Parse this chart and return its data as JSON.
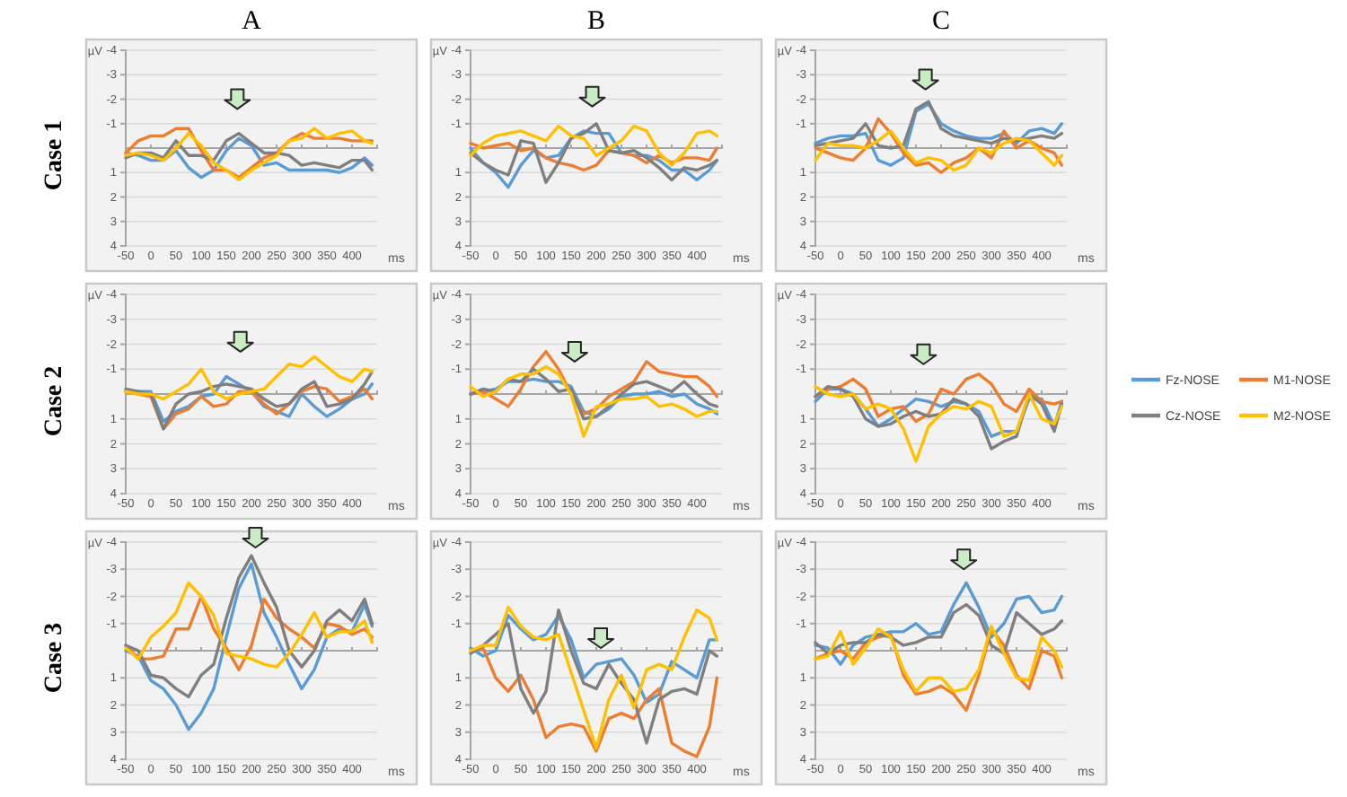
{
  "chart_data": [
    {
      "type": "line",
      "title": "A",
      "xlabel": "ms",
      "ylabel": "µV",
      "annotations": [
        "Case 1"
      ],
      "x": [
        -50,
        -25,
        0,
        25,
        50,
        75,
        100,
        125,
        150,
        175,
        200,
        225,
        250,
        275,
        300,
        325,
        350,
        375,
        400,
        425,
        440
      ],
      "xlim": [
        -50,
        450
      ],
      "xticks": [
        -50,
        0,
        50,
        100,
        150,
        200,
        250,
        300,
        350,
        400
      ],
      "ylim": [
        4,
        -4
      ],
      "yticks": [
        -4,
        -3,
        -2,
        -1,
        1,
        2,
        3,
        4
      ],
      "grid": "y",
      "series": [
        {
          "color": "#5b9bd5",
          "values": [
            0.2,
            0.3,
            0.5,
            0.5,
            0.1,
            0.8,
            1.2,
            0.9,
            0.1,
            -0.4,
            -0.1,
            0.7,
            0.6,
            0.9,
            0.9,
            0.9,
            0.9,
            1.0,
            0.8,
            0.4,
            0.7
          ]
        },
        {
          "color": "#ed7d31",
          "values": [
            0.2,
            -0.3,
            -0.5,
            -0.5,
            -0.8,
            -0.8,
            0.1,
            0.9,
            0.9,
            1.2,
            0.8,
            0.4,
            0.2,
            -0.3,
            -0.6,
            -0.4,
            -0.4,
            -0.4,
            -0.3,
            -0.3,
            -0.3
          ]
        },
        {
          "color": "#7f7f7f",
          "values": [
            0.4,
            0.2,
            0.2,
            0.4,
            -0.3,
            0.3,
            0.3,
            0.5,
            -0.3,
            -0.6,
            -0.2,
            0.2,
            0.2,
            0.3,
            0.7,
            0.6,
            0.7,
            0.8,
            0.5,
            0.5,
            0.9
          ]
        },
        {
          "color": "#ffc000",
          "values": [
            0.3,
            0.2,
            0.3,
            0.5,
            0.0,
            -0.6,
            -0.1,
            0.6,
            0.9,
            1.3,
            0.9,
            0.6,
            0.3,
            -0.3,
            -0.4,
            -0.8,
            -0.4,
            -0.6,
            -0.7,
            -0.3,
            -0.2
          ]
        }
      ]
    },
    {
      "type": "line",
      "title": "B",
      "xlabel": "ms",
      "ylabel": "µV",
      "x": [
        -50,
        -25,
        0,
        25,
        50,
        75,
        100,
        125,
        150,
        175,
        200,
        225,
        250,
        275,
        300,
        325,
        350,
        375,
        400,
        425,
        440
      ],
      "xlim": [
        -50,
        450
      ],
      "xticks": [
        -50,
        0,
        50,
        100,
        150,
        200,
        250,
        300,
        350,
        400
      ],
      "ylim": [
        4,
        -4
      ],
      "yticks": [
        -4,
        -3,
        -2,
        -1,
        1,
        2,
        3,
        4
      ],
      "grid": "y",
      "series": [
        {
          "color": "#5b9bd5",
          "values": [
            0.0,
            0.6,
            1.0,
            1.6,
            0.7,
            0.1,
            0.4,
            0.3,
            -0.4,
            -0.7,
            -0.6,
            -0.6,
            0.2,
            0.3,
            0.3,
            0.5,
            0.9,
            0.9,
            1.3,
            0.9,
            0.5
          ]
        },
        {
          "color": "#ed7d31",
          "values": [
            -0.2,
            0.0,
            -0.1,
            -0.2,
            0.1,
            0.0,
            0.4,
            0.6,
            0.7,
            0.9,
            0.7,
            0.1,
            0.2,
            0.3,
            0.6,
            0.3,
            0.6,
            0.4,
            0.4,
            0.5,
            0.0
          ]
        },
        {
          "color": "#7f7f7f",
          "values": [
            0.2,
            0.6,
            0.9,
            1.1,
            -0.3,
            -0.2,
            1.4,
            0.6,
            -0.4,
            -0.6,
            -1.0,
            0.1,
            0.2,
            0.1,
            0.4,
            0.8,
            1.3,
            0.8,
            0.9,
            0.7,
            0.5
          ]
        },
        {
          "color": "#ffc000",
          "values": [
            0.3,
            -0.2,
            -0.5,
            -0.6,
            -0.7,
            -0.5,
            -0.3,
            -0.9,
            -0.5,
            -0.4,
            0.3,
            0.0,
            -0.3,
            -0.9,
            -0.7,
            0.2,
            0.7,
            0.2,
            -0.6,
            -0.7,
            -0.5
          ]
        }
      ]
    },
    {
      "type": "line",
      "title": "C",
      "xlabel": "ms",
      "ylabel": "µV",
      "x": [
        -50,
        -25,
        0,
        25,
        50,
        75,
        100,
        125,
        150,
        175,
        200,
        225,
        250,
        275,
        300,
        325,
        350,
        375,
        400,
        425,
        440
      ],
      "xlim": [
        -50,
        450
      ],
      "xticks": [
        -50,
        0,
        50,
        100,
        150,
        200,
        250,
        300,
        350,
        400
      ],
      "ylim": [
        4,
        -4
      ],
      "yticks": [
        -4,
        -3,
        -2,
        -1,
        1,
        2,
        3,
        4
      ],
      "grid": "y",
      "series": [
        {
          "color": "#5b9bd5",
          "values": [
            -0.2,
            -0.4,
            -0.5,
            -0.5,
            -0.6,
            0.5,
            0.7,
            0.4,
            -1.5,
            -1.8,
            -1.0,
            -0.7,
            -0.5,
            -0.4,
            -0.4,
            -0.6,
            -0.2,
            -0.7,
            -0.8,
            -0.6,
            -1.0
          ]
        },
        {
          "color": "#ed7d31",
          "values": [
            0.0,
            0.2,
            0.4,
            0.5,
            0.0,
            -1.2,
            -0.6,
            0.2,
            0.7,
            0.6,
            1.0,
            0.6,
            0.4,
            0.0,
            0.4,
            -0.7,
            0.0,
            -0.3,
            0.0,
            0.2,
            0.7
          ]
        },
        {
          "color": "#7f7f7f",
          "values": [
            -0.1,
            -0.2,
            -0.3,
            -0.4,
            -1.0,
            -0.1,
            0.0,
            -0.1,
            -1.6,
            -1.9,
            -0.8,
            -0.5,
            -0.4,
            -0.3,
            -0.2,
            -0.4,
            -0.3,
            -0.4,
            -0.5,
            -0.4,
            -0.6
          ]
        },
        {
          "color": "#ffc000",
          "values": [
            0.5,
            -0.2,
            -0.1,
            -0.1,
            0.0,
            -0.3,
            -0.7,
            0.0,
            0.6,
            0.4,
            0.5,
            0.9,
            0.7,
            0.0,
            0.2,
            -0.2,
            -0.4,
            -0.3,
            0.2,
            0.7,
            0.3
          ]
        }
      ]
    },
    {
      "type": "line",
      "xlabel": "ms",
      "ylabel": "µV",
      "annotations": [
        "Case 2"
      ],
      "x": [
        -50,
        -25,
        0,
        25,
        50,
        75,
        100,
        125,
        150,
        175,
        200,
        225,
        250,
        275,
        300,
        325,
        350,
        375,
        400,
        425,
        440
      ],
      "xlim": [
        -50,
        450
      ],
      "xticks": [
        -50,
        0,
        50,
        100,
        150,
        200,
        250,
        300,
        350,
        400
      ],
      "ylim": [
        4,
        -4
      ],
      "yticks": [
        -4,
        -3,
        -2,
        -1,
        1,
        2,
        3,
        4
      ],
      "grid": "y",
      "series": [
        {
          "color": "#5b9bd5",
          "values": [
            -0.1,
            -0.1,
            -0.1,
            1.1,
            0.7,
            0.5,
            0.1,
            0.0,
            -0.7,
            -0.4,
            -0.1,
            0.5,
            0.7,
            0.9,
            0.0,
            0.5,
            0.9,
            0.6,
            0.2,
            0.0,
            -0.4
          ]
        },
        {
          "color": "#ed7d31",
          "values": [
            -0.1,
            0.0,
            0.1,
            1.4,
            0.8,
            0.6,
            0.1,
            0.5,
            0.4,
            -0.1,
            -0.1,
            0.4,
            0.8,
            0.4,
            -0.1,
            -0.3,
            -0.2,
            0.3,
            0.1,
            -0.2,
            0.2
          ]
        },
        {
          "color": "#7f7f7f",
          "values": [
            -0.2,
            -0.1,
            0.0,
            1.4,
            0.4,
            0.0,
            -0.1,
            -0.3,
            -0.4,
            -0.3,
            -0.2,
            0.2,
            0.5,
            0.4,
            -0.2,
            -0.5,
            0.5,
            0.4,
            0.2,
            -0.4,
            -0.9
          ]
        },
        {
          "color": "#ffc000",
          "values": [
            -0.1,
            0.0,
            0.0,
            0.2,
            -0.1,
            -0.4,
            -1.0,
            -0.1,
            0.2,
            0.0,
            -0.1,
            -0.2,
            -0.7,
            -1.2,
            -1.1,
            -1.5,
            -1.1,
            -0.7,
            -0.5,
            -1.0,
            -0.9
          ]
        }
      ]
    },
    {
      "type": "line",
      "xlabel": "ms",
      "ylabel": "µV",
      "x": [
        -50,
        -25,
        0,
        25,
        50,
        75,
        100,
        125,
        150,
        175,
        200,
        225,
        250,
        275,
        300,
        325,
        350,
        375,
        400,
        425,
        440
      ],
      "xlim": [
        -50,
        450
      ],
      "xticks": [
        -50,
        0,
        50,
        100,
        150,
        200,
        250,
        300,
        350,
        400
      ],
      "ylim": [
        4,
        -4
      ],
      "yticks": [
        -4,
        -3,
        -2,
        -1,
        1,
        2,
        3,
        4
      ],
      "grid": "y",
      "series": [
        {
          "color": "#5b9bd5",
          "values": [
            0.0,
            -0.1,
            -0.2,
            -0.5,
            -0.5,
            -0.6,
            -0.5,
            -0.5,
            -0.3,
            0.7,
            0.9,
            0.6,
            0.1,
            0.0,
            0.0,
            -0.1,
            0.1,
            0.0,
            0.4,
            0.6,
            0.8
          ]
        },
        {
          "color": "#ed7d31",
          "values": [
            0.0,
            -0.1,
            0.2,
            0.5,
            -0.2,
            -1.1,
            -1.7,
            -1.0,
            0.0,
            0.8,
            0.6,
            0.1,
            -0.2,
            -0.5,
            -1.3,
            -0.9,
            -0.8,
            -0.7,
            -0.7,
            -0.3,
            0.1
          ]
        },
        {
          "color": "#7f7f7f",
          "values": [
            0.0,
            -0.2,
            -0.1,
            -0.6,
            -0.5,
            -1.0,
            -0.6,
            -0.1,
            -0.2,
            1.0,
            0.9,
            0.5,
            0.0,
            -0.4,
            -0.5,
            -0.3,
            -0.1,
            -0.5,
            0.0,
            0.4,
            0.5
          ]
        },
        {
          "color": "#ffc000",
          "values": [
            -0.3,
            0.1,
            -0.1,
            -0.6,
            -0.8,
            -0.8,
            -1.1,
            -0.8,
            0.0,
            1.7,
            0.5,
            0.4,
            0.2,
            0.2,
            0.1,
            0.5,
            0.4,
            0.6,
            0.9,
            0.7,
            0.7
          ]
        }
      ]
    },
    {
      "type": "line",
      "xlabel": "ms",
      "ylabel": "µV",
      "legend": "right",
      "x": [
        -50,
        -25,
        0,
        25,
        50,
        75,
        100,
        125,
        150,
        175,
        200,
        225,
        250,
        275,
        300,
        325,
        350,
        375,
        400,
        425,
        440
      ],
      "xlim": [
        -50,
        450
      ],
      "xticks": [
        -50,
        0,
        50,
        100,
        150,
        200,
        250,
        300,
        350,
        400
      ],
      "ylim": [
        4,
        -4
      ],
      "yticks": [
        -4,
        -3,
        -2,
        -1,
        1,
        2,
        3,
        4
      ],
      "grid": "y",
      "series": [
        {
          "name": "Fz-NOSE",
          "color": "#5b9bd5",
          "values": [
            0.3,
            -0.2,
            -0.2,
            0.0,
            0.6,
            1.3,
            1.0,
            0.6,
            0.2,
            0.3,
            0.5,
            0.3,
            0.4,
            0.7,
            1.7,
            1.5,
            1.5,
            0.2,
            0.2,
            1.3,
            0.3
          ]
        },
        {
          "name": "M1-NOSE",
          "color": "#ed7d31",
          "values": [
            0.1,
            -0.2,
            -0.3,
            -0.6,
            -0.2,
            0.9,
            0.6,
            0.5,
            1.1,
            0.8,
            -0.2,
            0.0,
            -0.6,
            -0.8,
            -0.4,
            0.4,
            0.7,
            -0.2,
            0.3,
            0.4,
            0.3
          ]
        },
        {
          "name": "Cz-NOSE",
          "color": "#7f7f7f",
          "values": [
            0.1,
            -0.3,
            -0.2,
            0.1,
            1.0,
            1.3,
            1.2,
            0.9,
            0.7,
            0.9,
            0.8,
            0.2,
            0.4,
            0.9,
            2.2,
            1.9,
            1.7,
            0.0,
            0.4,
            1.5,
            0.4
          ]
        },
        {
          "name": "M2-NOSE",
          "color": "#ffc000",
          "values": [
            -0.3,
            0.0,
            0.1,
            0.0,
            0.6,
            0.4,
            0.6,
            1.4,
            2.7,
            1.3,
            0.8,
            0.5,
            0.6,
            0.3,
            0.5,
            1.7,
            1.5,
            0.0,
            1.0,
            1.2,
            0.5
          ]
        }
      ]
    },
    {
      "type": "line",
      "xlabel": "ms",
      "ylabel": "µV",
      "annotations": [
        "Case 3"
      ],
      "x": [
        -50,
        -25,
        0,
        25,
        50,
        75,
        100,
        125,
        150,
        175,
        200,
        225,
        250,
        275,
        300,
        325,
        350,
        375,
        400,
        425,
        440
      ],
      "xlim": [
        -50,
        450
      ],
      "xticks": [
        -50,
        0,
        50,
        100,
        150,
        200,
        250,
        300,
        350,
        400
      ],
      "ylim": [
        4,
        -4
      ],
      "yticks": [
        -4,
        -3,
        -2,
        -1,
        1,
        2,
        3,
        4
      ],
      "grid": "y",
      "series": [
        {
          "color": "#5b9bd5",
          "values": [
            0.0,
            0.2,
            1.1,
            1.4,
            2.0,
            2.9,
            2.3,
            1.4,
            -0.5,
            -2.3,
            -3.2,
            -1.4,
            -0.5,
            0.5,
            1.4,
            0.7,
            -0.5,
            -0.8,
            -0.7,
            -1.7,
            -0.9
          ]
        },
        {
          "color": "#ed7d31",
          "values": [
            -0.2,
            0.3,
            0.3,
            0.2,
            -0.8,
            -0.8,
            -2.0,
            -0.8,
            -0.1,
            0.7,
            -0.2,
            -1.9,
            -1.2,
            -0.8,
            -0.5,
            -0.1,
            -1.0,
            -0.9,
            -0.6,
            -0.8,
            -0.5
          ]
        },
        {
          "color": "#7f7f7f",
          "values": [
            -0.2,
            0.0,
            0.9,
            1.0,
            1.4,
            1.7,
            0.9,
            0.5,
            -1.2,
            -2.7,
            -3.5,
            -2.5,
            -1.6,
            0.0,
            0.6,
            0.0,
            -1.1,
            -1.5,
            -1.1,
            -1.9,
            -1.0
          ]
        },
        {
          "color": "#ffc000",
          "values": [
            -0.1,
            0.3,
            -0.5,
            -0.9,
            -1.4,
            -2.5,
            -2.0,
            -1.3,
            0.1,
            0.2,
            0.3,
            0.5,
            0.6,
            0.1,
            -0.6,
            -1.4,
            -0.5,
            -0.7,
            -0.7,
            -1.1,
            -0.3
          ]
        }
      ]
    },
    {
      "type": "line",
      "xlabel": "ms",
      "ylabel": "µV",
      "x": [
        -50,
        -25,
        0,
        25,
        50,
        75,
        100,
        125,
        150,
        175,
        200,
        225,
        250,
        275,
        300,
        325,
        350,
        375,
        400,
        425,
        440
      ],
      "xlim": [
        -50,
        450
      ],
      "xticks": [
        -50,
        0,
        50,
        100,
        150,
        200,
        250,
        300,
        350,
        400
      ],
      "ylim": [
        4,
        -4
      ],
      "yticks": [
        -4,
        -3,
        -2,
        -1,
        1,
        2,
        3,
        4
      ],
      "grid": "y",
      "series": [
        {
          "color": "#5b9bd5",
          "values": [
            -0.1,
            0.2,
            0.0,
            -1.3,
            -0.8,
            -0.4,
            -0.6,
            -1.3,
            -0.4,
            1.0,
            0.5,
            0.4,
            0.3,
            0.9,
            1.9,
            1.6,
            0.4,
            0.7,
            1.0,
            -0.4,
            -0.4
          ]
        },
        {
          "color": "#ed7d31",
          "values": [
            0.0,
            -0.1,
            1.0,
            1.5,
            0.9,
            1.8,
            3.2,
            2.8,
            2.7,
            2.8,
            3.7,
            2.5,
            2.3,
            2.5,
            1.8,
            1.4,
            3.4,
            3.7,
            3.9,
            2.8,
            1.0
          ]
        },
        {
          "color": "#7f7f7f",
          "values": [
            0.1,
            -0.2,
            -0.6,
            -1.0,
            1.4,
            2.3,
            1.5,
            -1.5,
            0.0,
            1.2,
            1.4,
            0.5,
            1.2,
            1.8,
            3.4,
            1.8,
            1.5,
            1.4,
            1.6,
            0.0,
            0.2
          ]
        },
        {
          "color": "#ffc000",
          "values": [
            0.0,
            -0.2,
            -0.2,
            -1.6,
            -0.9,
            -0.5,
            -0.4,
            -0.6,
            0.8,
            2.2,
            3.6,
            1.8,
            0.9,
            2.1,
            0.7,
            0.5,
            0.7,
            -0.5,
            -1.5,
            -1.2,
            -0.4
          ]
        }
      ]
    },
    {
      "type": "line",
      "xlabel": "ms",
      "ylabel": "µV",
      "x": [
        -50,
        -25,
        0,
        25,
        50,
        75,
        100,
        125,
        150,
        175,
        200,
        225,
        250,
        275,
        300,
        325,
        350,
        375,
        400,
        425,
        440
      ],
      "xlim": [
        -50,
        450
      ],
      "xticks": [
        -50,
        0,
        50,
        100,
        150,
        200,
        250,
        300,
        350,
        400
      ],
      "ylim": [
        4,
        -4
      ],
      "yticks": [
        -4,
        -3,
        -2,
        -1,
        1,
        2,
        3,
        4
      ],
      "grid": "y",
      "series": [
        {
          "color": "#5b9bd5",
          "values": [
            -0.2,
            -0.1,
            0.5,
            -0.2,
            -0.5,
            -0.6,
            -0.7,
            -0.7,
            -1.0,
            -0.6,
            -0.7,
            -1.7,
            -2.5,
            -1.6,
            -0.5,
            -1.0,
            -1.9,
            -2.0,
            -1.4,
            -1.5,
            -2.0
          ]
        },
        {
          "color": "#ed7d31",
          "values": [
            0.3,
            0.1,
            0.0,
            0.3,
            -0.3,
            -0.5,
            -0.6,
            0.9,
            1.6,
            1.5,
            1.3,
            1.6,
            2.2,
            0.9,
            -0.8,
            -0.2,
            0.9,
            1.4,
            0.0,
            0.2,
            1.0
          ]
        },
        {
          "color": "#7f7f7f",
          "values": [
            -0.3,
            0.1,
            -0.2,
            -0.3,
            -0.3,
            -0.6,
            -0.5,
            -0.2,
            -0.3,
            -0.5,
            -0.5,
            -1.4,
            -1.7,
            -1.3,
            -0.2,
            0.1,
            -1.4,
            -1.0,
            -0.6,
            -0.8,
            -1.1
          ]
        },
        {
          "color": "#ffc000",
          "values": [
            0.3,
            0.2,
            -0.7,
            0.5,
            -0.1,
            -0.8,
            -0.5,
            0.7,
            1.5,
            1.0,
            1.0,
            1.5,
            1.4,
            0.7,
            -0.9,
            0.1,
            1.0,
            1.1,
            -0.5,
            0.0,
            0.6
          ]
        }
      ]
    }
  ]
}
